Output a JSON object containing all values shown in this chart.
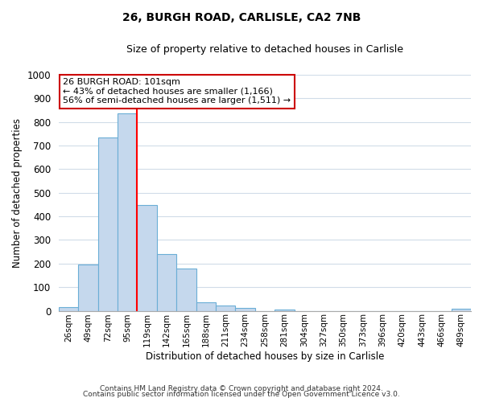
{
  "title": "26, BURGH ROAD, CARLISLE, CA2 7NB",
  "subtitle": "Size of property relative to detached houses in Carlisle",
  "xlabel": "Distribution of detached houses by size in Carlisle",
  "ylabel": "Number of detached properties",
  "bar_labels": [
    "26sqm",
    "49sqm",
    "72sqm",
    "95sqm",
    "119sqm",
    "142sqm",
    "165sqm",
    "188sqm",
    "211sqm",
    "234sqm",
    "258sqm",
    "281sqm",
    "304sqm",
    "327sqm",
    "350sqm",
    "373sqm",
    "396sqm",
    "420sqm",
    "443sqm",
    "466sqm",
    "489sqm"
  ],
  "bar_values": [
    15,
    197,
    735,
    835,
    447,
    240,
    178,
    35,
    22,
    12,
    0,
    5,
    0,
    0,
    0,
    0,
    0,
    0,
    0,
    0,
    8
  ],
  "bar_color": "#c5d8ed",
  "bar_edge_color": "#6aaed6",
  "ylim": [
    0,
    1000
  ],
  "yticks": [
    0,
    100,
    200,
    300,
    400,
    500,
    600,
    700,
    800,
    900,
    1000
  ],
  "red_line_bar_index": 4,
  "annotation_title": "26 BURGH ROAD: 101sqm",
  "annotation_line1": "← 43% of detached houses are smaller (1,166)",
  "annotation_line2": "56% of semi-detached houses are larger (1,511) →",
  "annotation_box_color": "#ffffff",
  "annotation_box_edge": "#cc0000",
  "footer1": "Contains HM Land Registry data © Crown copyright and database right 2024.",
  "footer2": "Contains public sector information licensed under the Open Government Licence v3.0.",
  "background_color": "#ffffff",
  "grid_color": "#d0dce8"
}
